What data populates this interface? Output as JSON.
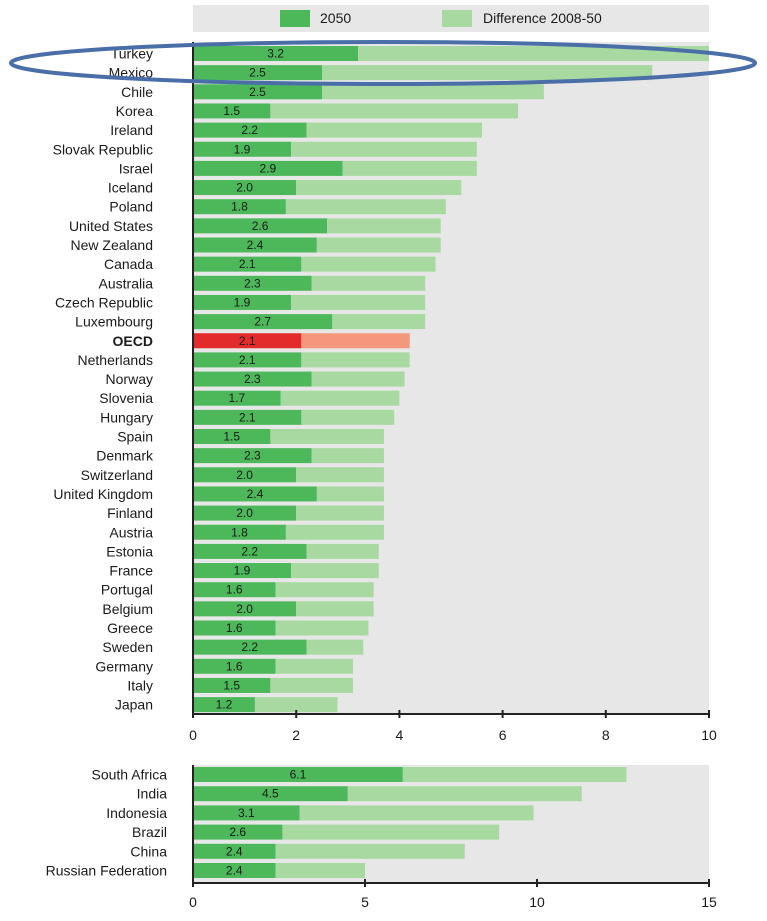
{
  "chart_data": [
    {
      "type": "bar",
      "orientation": "horizontal",
      "stacked": true,
      "categories": [
        "Turkey",
        "Mexico",
        "Chile",
        "Korea",
        "Ireland",
        "Slovak Republic",
        "Israel",
        "Iceland",
        "Poland",
        "United States",
        "New Zealand",
        "Canada",
        "Australia",
        "Czech Republic",
        "Luxembourg",
        "OECD",
        "Netherlands",
        "Norway",
        "Slovenia",
        "Hungary",
        "Spain",
        "Denmark",
        "Switzerland",
        "United Kingdom",
        "Finland",
        "Austria",
        "Estonia",
        "France",
        "Portugal",
        "Belgium",
        "Greece",
        "Sweden",
        "Germany",
        "Italy",
        "Japan"
      ],
      "series": [
        {
          "name": "2050",
          "values": [
            3.2,
            2.5,
            2.5,
            1.5,
            2.2,
            1.9,
            2.9,
            2.0,
            1.8,
            2.6,
            2.4,
            2.1,
            2.3,
            1.9,
            2.7,
            2.1,
            2.1,
            2.3,
            1.7,
            2.1,
            1.5,
            2.3,
            2.0,
            2.4,
            2.0,
            1.8,
            2.2,
            1.9,
            1.6,
            2.0,
            1.6,
            2.2,
            1.6,
            1.5,
            1.2
          ]
        },
        {
          "name": "Difference 2008-50",
          "values": [
            6.8,
            6.4,
            4.3,
            4.8,
            3.4,
            3.6,
            2.6,
            3.2,
            3.1,
            2.2,
            2.4,
            2.6,
            2.2,
            2.6,
            1.8,
            2.1,
            2.1,
            1.8,
            2.3,
            1.8,
            2.2,
            1.4,
            1.7,
            1.3,
            1.7,
            1.9,
            1.4,
            1.7,
            1.9,
            1.5,
            1.8,
            1.1,
            1.5,
            1.6,
            1.6
          ]
        }
      ],
      "value_labels": [
        "3.2",
        "2.5",
        "2.5",
        "1.5",
        "2.2",
        "1.9",
        "2.9",
        "2.0",
        "1.8",
        "2.6",
        "2.4",
        "2.1",
        "2.3",
        "1.9",
        "2.7",
        "2.1",
        "2.1",
        "2.3",
        "1.7",
        "2.1",
        "1.5",
        "2.3",
        "2.0",
        "2.4",
        "2.0",
        "1.8",
        "2.2",
        "1.9",
        "1.6",
        "2.0",
        "1.6",
        "2.2",
        "1.6",
        "1.5",
        "1.2"
      ],
      "highlight_category": "OECD",
      "xlim": [
        0,
        10
      ],
      "xticks": [
        "0",
        "2",
        "4",
        "6",
        "8",
        "10"
      ],
      "grid": false
    },
    {
      "type": "bar",
      "orientation": "horizontal",
      "stacked": true,
      "categories": [
        "South Africa",
        "India",
        "Indonesia",
        "Brazil",
        "China",
        "Russian Federation"
      ],
      "series": [
        {
          "name": "2050",
          "values": [
            6.1,
            4.5,
            3.1,
            2.6,
            2.4,
            2.4
          ]
        },
        {
          "name": "Difference 2008-50",
          "values": [
            6.5,
            6.8,
            6.8,
            6.3,
            5.5,
            2.6
          ]
        }
      ],
      "value_labels": [
        "6.1",
        "4.5",
        "3.1",
        "2.6",
        "2.4",
        "2.4"
      ],
      "xlim": [
        0,
        15
      ],
      "xticks": [
        "0",
        "5",
        "10",
        "15"
      ],
      "grid": false
    }
  ],
  "legend": {
    "position": "top",
    "items": [
      {
        "label": "2050",
        "color": "#4cb85a"
      },
      {
        "label": "Difference 2008-50",
        "color": "#a8d9a0"
      }
    ]
  },
  "colors": {
    "base": "#4cb85a",
    "diff": "#a8d9a0",
    "highlight_base": "#e32b2b",
    "highlight_diff": "#f4977c",
    "panel_bg": "#e7e7e8",
    "annotation_ellipse": "#4a6fa8"
  }
}
